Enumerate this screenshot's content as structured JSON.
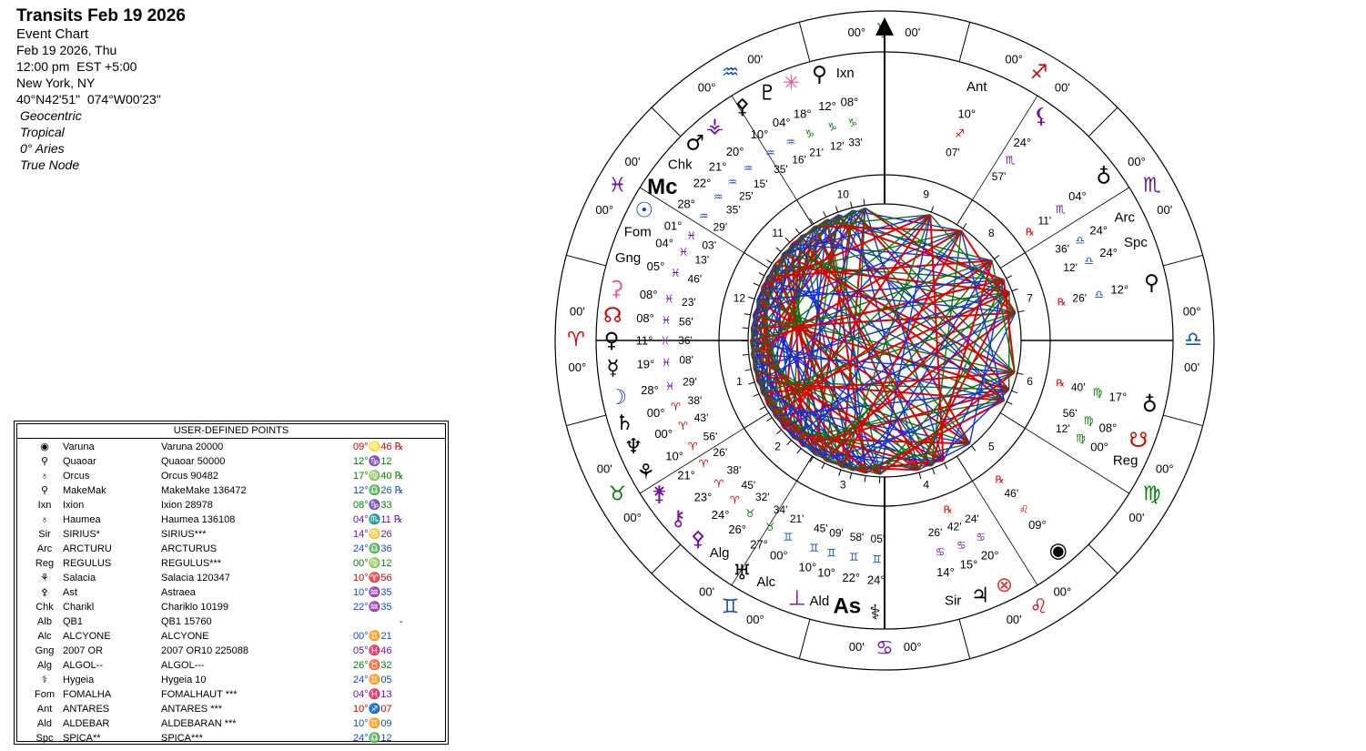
{
  "header": {
    "title": "Transits Feb 19 2026",
    "subtitle": "Event Chart",
    "lines": [
      "Feb 19 2026, Thu",
      "12:00 pm  EST +5:00",
      "New York, NY",
      "40°N42'51\"  074°W00'23\""
    ],
    "settings": [
      "Geocentric",
      "Tropical",
      "0° Aries",
      "True Node"
    ]
  },
  "table": {
    "title": "USER-DEFINED POINTS",
    "rows": [
      {
        "code": "◉",
        "name": "Varuna",
        "full": "Varuna 20000",
        "position": "09°♌46 ℞",
        "color": "#d00000"
      },
      {
        "code": "⚲",
        "name": "Quaoar",
        "full": "Quaoar 50000",
        "position": "12°♑12",
        "color": "#008000"
      },
      {
        "code": "♁",
        "name": "Orcus",
        "full": "Orcus 90482",
        "position": "17°♍40 ℞",
        "color": "#008000"
      },
      {
        "code": "⚲",
        "name": "MakeMak",
        "full": "MakeMake 136472",
        "position": "12°♎26 ℞",
        "color": "#1050c0"
      },
      {
        "code": "Ixn",
        "name": "Ixion",
        "full": "Ixion 28978",
        "position": "08°♑33",
        "color": "#008000"
      },
      {
        "code": "♁",
        "name": "Haumea",
        "full": "Haumea 136108",
        "position": "04°♏11 ℞",
        "color": "#7010a0"
      },
      {
        "code": "Sir",
        "name": "SIRIUS*",
        "full": "SIRIUS***",
        "position": "14°♋26",
        "color": "#7010a0"
      },
      {
        "code": "Arc",
        "name": "ARCTURU",
        "full": "ARCTURUS",
        "position": "24°♎36",
        "color": "#1050c0"
      },
      {
        "code": "Reg",
        "name": "REGULUS",
        "full": "REGULUS***",
        "position": "00°♍12",
        "color": "#008000"
      },
      {
        "code": "⚘",
        "name": "Salacia",
        "full": "Salacia 120347",
        "position": "10°♈56",
        "color": "#d00000"
      },
      {
        "code": "⚴",
        "name": "Ast",
        "full": "Astraea",
        "position": "10°♒35",
        "color": "#1050c0"
      },
      {
        "code": "Chk",
        "name": "Charikl",
        "full": "Chariklo 10199",
        "position": "22°♒35",
        "color": "#1050c0"
      },
      {
        "code": "Alb",
        "name": "QB1",
        "full": "QB1 15760",
        "position": "-",
        "color": "#000000"
      },
      {
        "code": "Alc",
        "name": "ALCYONE",
        "full": "ALCYONE",
        "position": "00°♊21",
        "color": "#1050c0"
      },
      {
        "code": "Gng",
        "name": "2007 OR",
        "full": "2007 OR10 225088",
        "position": "05°♓46",
        "color": "#7010a0"
      },
      {
        "code": "Alg",
        "name": "ALGOL--",
        "full": "ALGOL---",
        "position": "26°♉32",
        "color": "#008000"
      },
      {
        "code": "⚕",
        "name": "Hygeia",
        "full": "Hygeia 10",
        "position": "24°♊05",
        "color": "#1050c0"
      },
      {
        "code": "Fom",
        "name": "FOMALHA",
        "full": "FOMALHAUT ***",
        "position": "04°♓13",
        "color": "#7010a0"
      },
      {
        "code": "Ant",
        "name": "ANTARES",
        "full": "ANTARES ***",
        "position": "10°♐07",
        "color": "#d00000"
      },
      {
        "code": "Ald",
        "name": "ALDEBAR",
        "full": "ALDEBARAN ***",
        "position": "10°♊09",
        "color": "#1050c0"
      },
      {
        "code": "Spc",
        "name": "SPICA**",
        "full": "SPICA***",
        "position": "24°♎12",
        "color": "#1050c0"
      }
    ]
  },
  "wheel": {
    "signs": [
      {
        "glyph": "♈",
        "color": "#d00000",
        "deg": "00°",
        "min": "00'"
      },
      {
        "glyph": "♉",
        "color": "#008000",
        "deg": "00°",
        "min": "00'"
      },
      {
        "glyph": "♊",
        "color": "#1050c0",
        "deg": "00°",
        "min": "00'"
      },
      {
        "glyph": "♋",
        "color": "#7010a0",
        "deg": "00°",
        "min": "00'"
      },
      {
        "glyph": "♌",
        "color": "#d00000",
        "deg": "00°",
        "min": "00'"
      },
      {
        "glyph": "♍",
        "color": "#008000",
        "deg": "00°",
        "min": "00'"
      },
      {
        "glyph": "♎",
        "color": "#1050c0",
        "deg": "00°",
        "min": "00'"
      },
      {
        "glyph": "♏",
        "color": "#7010a0",
        "deg": "00°",
        "min": "00'"
      },
      {
        "glyph": "♐",
        "color": "#d00000",
        "deg": "00°",
        "min": "00'"
      },
      {
        "glyph": "♑",
        "color": "#008000",
        "deg": "00°",
        "min": "00'"
      },
      {
        "glyph": "♒",
        "color": "#1050c0",
        "deg": "00°",
        "min": "00'"
      },
      {
        "glyph": "♓",
        "color": "#7010a0",
        "deg": "00°",
        "min": "00'"
      }
    ],
    "houses": [
      "1",
      "2",
      "3",
      "4",
      "5",
      "6",
      "7",
      "8",
      "9",
      "10",
      "11",
      "12"
    ],
    "bodies": [
      {
        "glyph": "✳",
        "color": "#e8559c",
        "deg": "18°",
        "sign": "♑",
        "sign_color": "#008000",
        "min": "21'"
      },
      {
        "glyph": "⚲",
        "color": "#000000",
        "deg": "12°",
        "sign": "♑",
        "sign_color": "#008000",
        "min": "12'"
      },
      {
        "glyph": "Ixn",
        "color": "#000000",
        "deg": "08°",
        "sign": "♑",
        "sign_color": "#008000",
        "min": "33'"
      },
      {
        "glyph": "♇",
        "color": "#000000",
        "deg": "04°",
        "sign": "♒",
        "sign_color": "#1050c0",
        "min": "16'"
      },
      {
        "glyph": "⚴",
        "color": "#000000",
        "deg": "10°",
        "sign": "♒",
        "sign_color": "#1050c0",
        "min": "35'"
      },
      {
        "glyph": "⚶",
        "color": "#7010a0",
        "deg": "20°",
        "sign": "♒",
        "sign_color": "#1050c0",
        "min": "15'"
      },
      {
        "glyph": "♂",
        "color": "#000000",
        "deg": "21°",
        "sign": "♒",
        "sign_color": "#1050c0",
        "min": "25'"
      },
      {
        "glyph": "Chk",
        "color": "#000000",
        "deg": "22°",
        "sign": "♒",
        "sign_color": "#1050c0",
        "min": "35'"
      },
      {
        "glyph": "Mc",
        "color": "#000000",
        "deg": "28°",
        "sign": "♒",
        "sign_color": "#1050c0",
        "min": "29'"
      },
      {
        "glyph": "☉",
        "color": "#1040c0",
        "deg": "01°",
        "sign": "♓",
        "sign_color": "#7010a0",
        "min": "03'"
      },
      {
        "glyph": "Fom",
        "color": "#000000",
        "deg": "04°",
        "sign": "♓",
        "sign_color": "#7010a0",
        "min": "13'"
      },
      {
        "glyph": "Gng",
        "color": "#000000",
        "deg": "05°",
        "sign": "♓",
        "sign_color": "#7010a0",
        "min": "46'"
      },
      {
        "glyph": "⚳",
        "color": "#e8559c",
        "deg": "08°",
        "sign": "♓",
        "sign_color": "#7010a0",
        "min": "23'"
      },
      {
        "glyph": "☊",
        "color": "#d00000",
        "deg": "08°",
        "sign": "♓",
        "sign_color": "#7010a0",
        "min": "56'"
      },
      {
        "glyph": "♀",
        "color": "#000000",
        "deg": "11°",
        "sign": "♓",
        "sign_color": "#7010a0",
        "min": "36'"
      },
      {
        "glyph": "☿",
        "color": "#000000",
        "deg": "19°",
        "sign": "♓",
        "sign_color": "#7010a0",
        "min": "08'"
      },
      {
        "glyph": "☽",
        "color": "#1040c0",
        "deg": "28°",
        "sign": "♓",
        "sign_color": "#7010a0",
        "min": "29'"
      },
      {
        "glyph": "♄",
        "color": "#000000",
        "deg": "00°",
        "sign": "♈",
        "sign_color": "#d00000",
        "min": "38'"
      },
      {
        "glyph": "♆",
        "color": "#000000",
        "deg": "00°",
        "sign": "♈",
        "sign_color": "#d00000",
        "min": "43'"
      },
      {
        "glyph": "⚘",
        "color": "#000000",
        "deg": "10°",
        "sign": "♈",
        "sign_color": "#d00000",
        "min": "56'"
      },
      {
        "glyph": "⚵",
        "color": "#7010a0",
        "deg": "21°",
        "sign": "♈",
        "sign_color": "#d00000",
        "min": "26'"
      },
      {
        "glyph": "⚷",
        "color": "#7010a0",
        "deg": "23°",
        "sign": "♈",
        "sign_color": "#d00000",
        "min": "38'"
      },
      {
        "glyph": "⚴",
        "color": "#7010a0",
        "deg": "24°",
        "sign": "♈",
        "sign_color": "#d00000",
        "min": "45'"
      },
      {
        "glyph": "Alg",
        "color": "#000000",
        "deg": "26°",
        "sign": "♉",
        "sign_color": "#008000",
        "min": "32'"
      },
      {
        "glyph": "♅",
        "color": "#000000",
        "deg": "27°",
        "sign": "♉",
        "sign_color": "#008000",
        "min": "34'"
      },
      {
        "glyph": "Alc",
        "color": "#000000",
        "deg": "00°",
        "sign": "♊",
        "sign_color": "#1050c0",
        "min": "21'"
      },
      {
        "glyph": "⊥",
        "color": "#7010a0",
        "deg": "10°",
        "sign": "♊",
        "sign_color": "#1050c0",
        "min": "45'"
      },
      {
        "glyph": "Ald",
        "color": "#000000",
        "deg": "10°",
        "sign": "♊",
        "sign_color": "#1050c0",
        "min": "09'"
      },
      {
        "glyph": "As",
        "color": "#000000",
        "deg": "22°",
        "sign": "♊",
        "sign_color": "#1050c0",
        "min": "58'"
      },
      {
        "glyph": "⚕",
        "color": "#000000",
        "deg": "24°",
        "sign": "♊",
        "sign_color": "#1050c0",
        "min": "05'"
      },
      {
        "glyph": "Sir",
        "color": "#000000",
        "deg": "14°",
        "sign": "♋",
        "sign_color": "#7010a0",
        "min": "26'"
      },
      {
        "glyph": "♃",
        "color": "#000000",
        "deg": "15°",
        "sign": "♋",
        "sign_color": "#7010a0",
        "min": "42'",
        "retro": "℞"
      },
      {
        "glyph": "⊗",
        "color": "#d04040",
        "deg": "20°",
        "sign": "♋",
        "sign_color": "#7010a0",
        "min": "24'"
      },
      {
        "glyph": "◉",
        "color": "#000000",
        "deg": "09°",
        "sign": "♌",
        "sign_color": "#d00000",
        "min": "46'",
        "retro": "℞"
      },
      {
        "glyph": "Reg",
        "color": "#000000",
        "deg": "00°",
        "sign": "♍",
        "sign_color": "#008000",
        "min": "12'"
      },
      {
        "glyph": "☋",
        "color": "#d00000",
        "deg": "08°",
        "sign": "♍",
        "sign_color": "#008000",
        "min": "56'"
      },
      {
        "glyph": "♁",
        "color": "#000000",
        "deg": "17°",
        "sign": "♍",
        "sign_color": "#008000",
        "min": "40'",
        "retro": "℞"
      },
      {
        "glyph": "⚲",
        "color": "#000000",
        "deg": "12°",
        "sign": "♎",
        "sign_color": "#1050c0",
        "min": "26'",
        "retro": "℞"
      },
      {
        "glyph": "Spc",
        "color": "#000000",
        "deg": "24°",
        "sign": "♎",
        "sign_color": "#1050c0",
        "min": "12'"
      },
      {
        "glyph": "Arc",
        "color": "#000000",
        "deg": "24°",
        "sign": "♎",
        "sign_color": "#1050c0",
        "min": "36'"
      },
      {
        "glyph": "♁",
        "color": "#000000",
        "deg": "04°",
        "sign": "♏",
        "sign_color": "#7010a0",
        "min": "11'",
        "retro": "℞"
      },
      {
        "glyph": "⚸",
        "color": "#7010a0",
        "deg": "24°",
        "sign": "♏",
        "sign_color": "#7010a0",
        "min": "57'"
      },
      {
        "glyph": "Ant",
        "color": "#000000",
        "deg": "10°",
        "sign": "♐",
        "sign_color": "#d00000",
        "min": "07'"
      }
    ]
  }
}
